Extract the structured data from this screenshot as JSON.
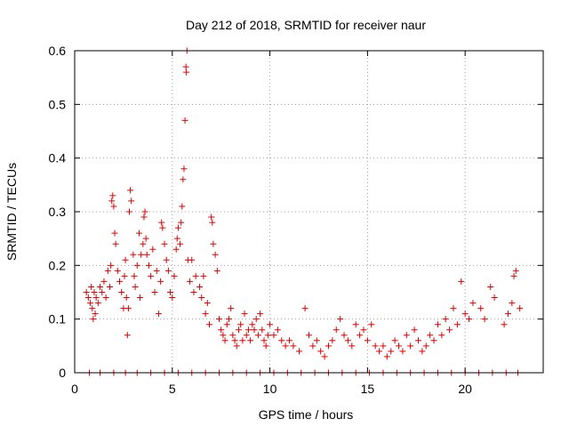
{
  "chart_data": {
    "type": "scatter",
    "title": "Day 212 of 2018, SRMTID for receiver naur",
    "xlabel": "GPS time / hours",
    "ylabel": "SRMTID / TECUs",
    "xlim": [
      0,
      24
    ],
    "ylim": [
      0,
      0.6
    ],
    "xticks": [
      0,
      5,
      10,
      15,
      20
    ],
    "yticks": [
      0,
      0.1,
      0.2,
      0.3,
      0.4,
      0.5,
      0.6
    ],
    "xtick_labels": [
      "0",
      "5",
      "10",
      "15",
      "20"
    ],
    "ytick_labels": [
      "0",
      "0.1",
      "0.2",
      "0.3",
      "0.4",
      "0.5",
      "0.6"
    ],
    "grid": true,
    "marker": "+",
    "color": "#e00000",
    "series": [
      {
        "name": "SRMTID",
        "points": [
          [
            0.6,
            0.15
          ],
          [
            0.7,
            0.14
          ],
          [
            0.8,
            0.13
          ],
          [
            0.85,
            0.16
          ],
          [
            0.9,
            0.12
          ],
          [
            0.95,
            0.1
          ],
          [
            1.0,
            0.15
          ],
          [
            1.05,
            0.11
          ],
          [
            1.1,
            0.14
          ],
          [
            1.2,
            0.13
          ],
          [
            1.3,
            0.16
          ],
          [
            1.4,
            0.15
          ],
          [
            1.5,
            0.17
          ],
          [
            1.6,
            0.14
          ],
          [
            1.7,
            0.19
          ],
          [
            1.8,
            0.16
          ],
          [
            1.85,
            0.2
          ],
          [
            1.9,
            0.32
          ],
          [
            1.95,
            0.33
          ],
          [
            2.0,
            0.31
          ],
          [
            2.05,
            0.26
          ],
          [
            2.1,
            0.24
          ],
          [
            2.2,
            0.19
          ],
          [
            2.3,
            0.17
          ],
          [
            2.4,
            0.15
          ],
          [
            2.5,
            0.12
          ],
          [
            2.55,
            0.18
          ],
          [
            2.6,
            0.21
          ],
          [
            2.65,
            0.14
          ],
          [
            2.7,
            0.07
          ],
          [
            2.75,
            0.12
          ],
          [
            2.8,
            0.3
          ],
          [
            2.85,
            0.34
          ],
          [
            2.9,
            0.32
          ],
          [
            3.0,
            0.22
          ],
          [
            3.05,
            0.18
          ],
          [
            3.1,
            0.16
          ],
          [
            3.2,
            0.2
          ],
          [
            3.3,
            0.26
          ],
          [
            3.35,
            0.14
          ],
          [
            3.4,
            0.22
          ],
          [
            3.5,
            0.24
          ],
          [
            3.55,
            0.29
          ],
          [
            3.6,
            0.3
          ],
          [
            3.65,
            0.25
          ],
          [
            3.7,
            0.22
          ],
          [
            3.8,
            0.2
          ],
          [
            3.9,
            0.18
          ],
          [
            4.0,
            0.23
          ],
          [
            4.1,
            0.15
          ],
          [
            4.2,
            0.19
          ],
          [
            4.3,
            0.11
          ],
          [
            4.4,
            0.17
          ],
          [
            4.45,
            0.28
          ],
          [
            4.5,
            0.27
          ],
          [
            4.6,
            0.24
          ],
          [
            4.7,
            0.21
          ],
          [
            4.8,
            0.19
          ],
          [
            4.9,
            0.15
          ],
          [
            5.0,
            0.14
          ],
          [
            5.1,
            0.18
          ],
          [
            5.2,
            0.23
          ],
          [
            5.25,
            0.25
          ],
          [
            5.3,
            0.27
          ],
          [
            5.4,
            0.24
          ],
          [
            5.45,
            0.28
          ],
          [
            5.5,
            0.31
          ],
          [
            5.55,
            0.36
          ],
          [
            5.6,
            0.38
          ],
          [
            5.65,
            0.47
          ],
          [
            5.7,
            0.57
          ],
          [
            5.72,
            0.56
          ],
          [
            5.75,
            0.6
          ],
          [
            5.8,
            0.21
          ],
          [
            5.9,
            0.17
          ],
          [
            6.0,
            0.21
          ],
          [
            6.1,
            0.15
          ],
          [
            6.2,
            0.18
          ],
          [
            6.4,
            0.16
          ],
          [
            6.5,
            0.14
          ],
          [
            6.6,
            0.18
          ],
          [
            6.7,
            0.11
          ],
          [
            6.8,
            0.13
          ],
          [
            6.9,
            0.09
          ],
          [
            7.0,
            0.29
          ],
          [
            7.05,
            0.28
          ],
          [
            7.1,
            0.24
          ],
          [
            7.2,
            0.22
          ],
          [
            7.3,
            0.19
          ],
          [
            7.4,
            0.1
          ],
          [
            7.5,
            0.08
          ],
          [
            7.6,
            0.07
          ],
          [
            7.7,
            0.06
          ],
          [
            7.8,
            0.09
          ],
          [
            7.9,
            0.1
          ],
          [
            8.0,
            0.12
          ],
          [
            8.1,
            0.07
          ],
          [
            8.2,
            0.06
          ],
          [
            8.3,
            0.05
          ],
          [
            8.4,
            0.08
          ],
          [
            8.5,
            0.09
          ],
          [
            8.6,
            0.06
          ],
          [
            8.7,
            0.11
          ],
          [
            8.8,
            0.07
          ],
          [
            8.9,
            0.08
          ],
          [
            9.0,
            0.06
          ],
          [
            9.1,
            0.09
          ],
          [
            9.2,
            0.08
          ],
          [
            9.3,
            0.1
          ],
          [
            9.4,
            0.07
          ],
          [
            9.5,
            0.11
          ],
          [
            9.6,
            0.08
          ],
          [
            9.7,
            0.06
          ],
          [
            9.8,
            0.05
          ],
          [
            9.9,
            0.07
          ],
          [
            10.0,
            0.09
          ],
          [
            10.2,
            0.07
          ],
          [
            10.4,
            0.08
          ],
          [
            10.6,
            0.06
          ],
          [
            10.8,
            0.05
          ],
          [
            11.0,
            0.06
          ],
          [
            11.2,
            0.05
          ],
          [
            11.5,
            0.04
          ],
          [
            11.8,
            0.12
          ],
          [
            12.0,
            0.07
          ],
          [
            12.2,
            0.05
          ],
          [
            12.4,
            0.06
          ],
          [
            12.6,
            0.04
          ],
          [
            12.8,
            0.03
          ],
          [
            13.0,
            0.05
          ],
          [
            13.2,
            0.06
          ],
          [
            13.4,
            0.08
          ],
          [
            13.6,
            0.1
          ],
          [
            13.8,
            0.07
          ],
          [
            14.0,
            0.06
          ],
          [
            14.2,
            0.05
          ],
          [
            14.4,
            0.09
          ],
          [
            14.6,
            0.07
          ],
          [
            14.8,
            0.08
          ],
          [
            15.0,
            0.06
          ],
          [
            15.2,
            0.09
          ],
          [
            15.4,
            0.05
          ],
          [
            15.6,
            0.04
          ],
          [
            15.8,
            0.05
          ],
          [
            16.0,
            0.03
          ],
          [
            16.2,
            0.04
          ],
          [
            16.4,
            0.06
          ],
          [
            16.6,
            0.05
          ],
          [
            16.8,
            0.04
          ],
          [
            17.0,
            0.07
          ],
          [
            17.2,
            0.05
          ],
          [
            17.4,
            0.08
          ],
          [
            17.6,
            0.06
          ],
          [
            17.8,
            0.04
          ],
          [
            18.0,
            0.05
          ],
          [
            18.2,
            0.07
          ],
          [
            18.4,
            0.06
          ],
          [
            18.6,
            0.09
          ],
          [
            18.8,
            0.07
          ],
          [
            19.0,
            0.1
          ],
          [
            19.2,
            0.08
          ],
          [
            19.4,
            0.12
          ],
          [
            19.6,
            0.09
          ],
          [
            19.8,
            0.17
          ],
          [
            20.0,
            0.11
          ],
          [
            20.2,
            0.1
          ],
          [
            20.4,
            0.13
          ],
          [
            20.8,
            0.12
          ],
          [
            21.0,
            0.1
          ],
          [
            21.3,
            0.16
          ],
          [
            21.5,
            0.14
          ],
          [
            22.0,
            0.09
          ],
          [
            22.2,
            0.11
          ],
          [
            22.4,
            0.13
          ],
          [
            22.5,
            0.18
          ],
          [
            22.6,
            0.19
          ],
          [
            22.8,
            0.12
          ],
          [
            0.75,
            0.0
          ],
          [
            1.3,
            0.0
          ],
          [
            2.0,
            0.0
          ],
          [
            2.6,
            0.0
          ],
          [
            3.2,
            0.0
          ],
          [
            3.9,
            0.0
          ],
          [
            4.6,
            0.0
          ],
          [
            5.3,
            0.0
          ],
          [
            6.0,
            0.0
          ],
          [
            6.7,
            0.0
          ],
          [
            7.4,
            0.0
          ],
          [
            8.1,
            0.0
          ],
          [
            8.8,
            0.0
          ],
          [
            9.5,
            0.0
          ],
          [
            10.2,
            0.0
          ],
          [
            10.9,
            0.0
          ],
          [
            11.6,
            0.0
          ],
          [
            12.3,
            0.0
          ],
          [
            13.0,
            0.0
          ],
          [
            13.7,
            0.0
          ],
          [
            14.4,
            0.0
          ],
          [
            15.1,
            0.0
          ],
          [
            15.8,
            0.0
          ],
          [
            16.5,
            0.0
          ],
          [
            17.2,
            0.0
          ],
          [
            17.9,
            0.0
          ],
          [
            18.6,
            0.0
          ],
          [
            19.3,
            0.0
          ],
          [
            20.0,
            0.0
          ],
          [
            20.7,
            0.0
          ],
          [
            21.4,
            0.0
          ],
          [
            22.1,
            0.0
          ],
          [
            22.7,
            0.0
          ]
        ]
      }
    ]
  }
}
